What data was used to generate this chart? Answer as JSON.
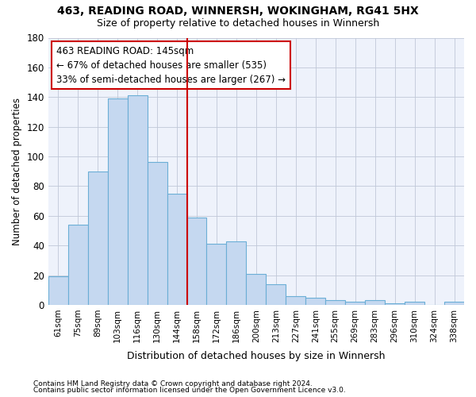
{
  "title1": "463, READING ROAD, WINNERSH, WOKINGHAM, RG41 5HX",
  "title2": "Size of property relative to detached houses in Winnersh",
  "xlabel": "Distribution of detached houses by size in Winnersh",
  "ylabel": "Number of detached properties",
  "categories": [
    "61sqm",
    "75sqm",
    "89sqm",
    "103sqm",
    "116sqm",
    "130sqm",
    "144sqm",
    "158sqm",
    "172sqm",
    "186sqm",
    "200sqm",
    "213sqm",
    "227sqm",
    "241sqm",
    "255sqm",
    "269sqm",
    "283sqm",
    "296sqm",
    "310sqm",
    "324sqm",
    "338sqm"
  ],
  "values": [
    19,
    54,
    90,
    139,
    141,
    96,
    75,
    59,
    41,
    43,
    21,
    14,
    6,
    5,
    3,
    2,
    3,
    1,
    2,
    0,
    2
  ],
  "bar_color": "#c5d8f0",
  "bar_edge_color": "#6baed6",
  "vline_color": "#cc0000",
  "annotation_text": "463 READING ROAD: 145sqm\n← 67% of detached houses are smaller (535)\n33% of semi-detached houses are larger (267) →",
  "annotation_box_color": "#ffffff",
  "annotation_box_edge": "#cc0000",
  "ylim": [
    0,
    180
  ],
  "yticks": [
    0,
    20,
    40,
    60,
    80,
    100,
    120,
    140,
    160,
    180
  ],
  "footer1": "Contains HM Land Registry data © Crown copyright and database right 2024.",
  "footer2": "Contains public sector information licensed under the Open Government Licence v3.0.",
  "bg_color": "#ffffff",
  "plot_bg_color": "#eef2fb",
  "grid_color": "#c0c8d8"
}
